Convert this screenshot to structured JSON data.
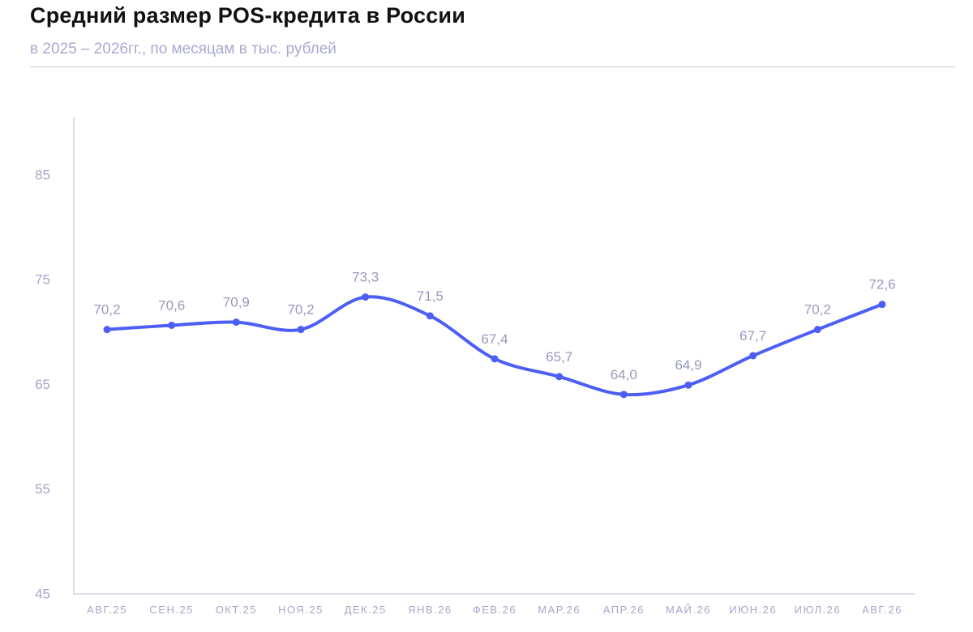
{
  "title": "Средний размер POS-кредита в России",
  "subtitle": "в 2025 – 2026гг., по месяцам в тыс. рублей",
  "colors": {
    "line": "#4d5ef5",
    "axis": "#b9b9dd",
    "tick_text": "#a6a6cc",
    "label_text": "#9898c0"
  },
  "chart_data": {
    "type": "line",
    "title": "Средний размер POS-кредита в России",
    "subtitle": "в 2025 – 2026гг., по месяцам в тыс. рублей",
    "xlabel": "",
    "ylabel": "",
    "ylim": [
      45,
      90
    ],
    "yticks": [
      45,
      55,
      65,
      75,
      85
    ],
    "grid": false,
    "smooth": true,
    "categories": [
      "АВГ.25",
      "СЕН.25",
      "ОКТ.25",
      "НОЯ.25",
      "ДЕК.25",
      "ЯНВ.26",
      "ФЕВ.26",
      "МАР.26",
      "АПР.26",
      "МАЙ.26",
      "ИЮН.26",
      "ИЮЛ.26",
      "АВГ.26"
    ],
    "values": [
      70.2,
      70.6,
      70.9,
      70.2,
      73.3,
      71.5,
      67.4,
      65.7,
      64.0,
      64.9,
      67.7,
      70.2,
      72.6
    ],
    "labels": [
      "70,2",
      "70,6",
      "70,9",
      "70,2",
      "73,3",
      "71,5",
      "67,4",
      "65,7",
      "64,0",
      "64,9",
      "67,7",
      "70,2",
      "72,6"
    ]
  }
}
